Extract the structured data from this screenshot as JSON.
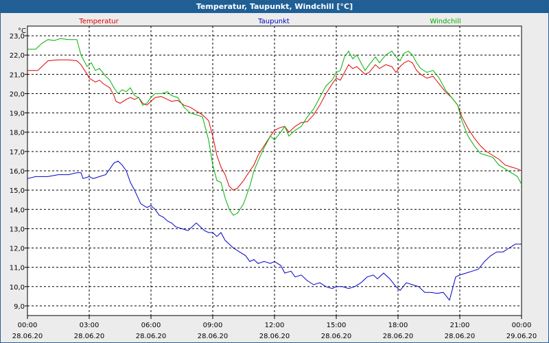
{
  "window": {
    "title": "Temperatur, Taupunkt, Windchill [°C]"
  },
  "chart_data": {
    "type": "line",
    "title": "Temperatur, Taupunkt, Windchill [°C]",
    "ylabel": "°C",
    "ylim": [
      8.5,
      23.5
    ],
    "grid": true,
    "legend": "top",
    "x_ticks": [
      {
        "time": "00:00",
        "date": "28.06.20",
        "h": 0
      },
      {
        "time": "03:00",
        "date": "28.06.20",
        "h": 3
      },
      {
        "time": "06:00",
        "date": "28.06.20",
        "h": 6
      },
      {
        "time": "09:00",
        "date": "28.06.20",
        "h": 9
      },
      {
        "time": "12:00",
        "date": "28.06.20",
        "h": 12
      },
      {
        "time": "15:00",
        "date": "28.06.20",
        "h": 15
      },
      {
        "time": "18:00",
        "date": "28.06.20",
        "h": 18
      },
      {
        "time": "21:00",
        "date": "28.06.20",
        "h": 21
      },
      {
        "time": "00:00",
        "date": "29.06.20",
        "h": 24
      }
    ],
    "y_ticks": [
      "9,0",
      "10,0",
      "11,0",
      "12,0",
      "13,0",
      "14,0",
      "15,0",
      "16,0",
      "17,0",
      "18,0",
      "19,0",
      "20,0",
      "21,0",
      "22,0",
      "23,0"
    ],
    "series": [
      {
        "name": "Temperatur",
        "color": "#e00000",
        "points": [
          [
            0,
            21.2
          ],
          [
            0.5,
            21.2
          ],
          [
            0.8,
            21.5
          ],
          [
            1.0,
            21.7
          ],
          [
            1.5,
            21.75
          ],
          [
            2.0,
            21.75
          ],
          [
            2.4,
            21.7
          ],
          [
            2.6,
            21.5
          ],
          [
            2.9,
            21.0
          ],
          [
            3.0,
            20.8
          ],
          [
            3.3,
            20.6
          ],
          [
            3.5,
            20.7
          ],
          [
            3.7,
            20.5
          ],
          [
            4.0,
            20.3
          ],
          [
            4.2,
            19.9
          ],
          [
            4.3,
            19.6
          ],
          [
            4.5,
            19.5
          ],
          [
            4.8,
            19.7
          ],
          [
            5.0,
            19.8
          ],
          [
            5.2,
            19.7
          ],
          [
            5.4,
            19.8
          ],
          [
            5.6,
            19.5
          ],
          [
            5.8,
            19.4
          ],
          [
            6.0,
            19.6
          ],
          [
            6.2,
            19.8
          ],
          [
            6.5,
            19.85
          ],
          [
            6.8,
            19.7
          ],
          [
            7.0,
            19.6
          ],
          [
            7.3,
            19.65
          ],
          [
            7.6,
            19.4
          ],
          [
            7.9,
            19.3
          ],
          [
            8.2,
            19.1
          ],
          [
            8.5,
            18.9
          ],
          [
            8.8,
            18.6
          ],
          [
            9.0,
            17.8
          ],
          [
            9.2,
            16.8
          ],
          [
            9.4,
            16.2
          ],
          [
            9.6,
            15.8
          ],
          [
            9.8,
            15.2
          ],
          [
            10.0,
            15.0
          ],
          [
            10.2,
            15.1
          ],
          [
            10.5,
            15.5
          ],
          [
            10.8,
            16.0
          ],
          [
            11.0,
            16.3
          ],
          [
            11.2,
            16.8
          ],
          [
            11.5,
            17.3
          ],
          [
            11.8,
            17.8
          ],
          [
            12.0,
            18.1
          ],
          [
            12.3,
            18.25
          ],
          [
            12.5,
            18.3
          ],
          [
            12.7,
            18.0
          ],
          [
            13.0,
            18.3
          ],
          [
            13.3,
            18.5
          ],
          [
            13.6,
            18.55
          ],
          [
            13.9,
            18.9
          ],
          [
            14.2,
            19.4
          ],
          [
            14.5,
            20.0
          ],
          [
            14.8,
            20.5
          ],
          [
            15.0,
            20.8
          ],
          [
            15.2,
            20.7
          ],
          [
            15.4,
            21.1
          ],
          [
            15.6,
            21.5
          ],
          [
            15.8,
            21.3
          ],
          [
            16.0,
            21.4
          ],
          [
            16.2,
            21.2
          ],
          [
            16.4,
            21.0
          ],
          [
            16.6,
            21.1
          ],
          [
            16.9,
            21.5
          ],
          [
            17.1,
            21.3
          ],
          [
            17.4,
            21.5
          ],
          [
            17.7,
            21.4
          ],
          [
            17.9,
            21.1
          ],
          [
            18.1,
            21.4
          ],
          [
            18.3,
            21.6
          ],
          [
            18.5,
            21.7
          ],
          [
            18.7,
            21.6
          ],
          [
            18.9,
            21.2
          ],
          [
            19.1,
            21.0
          ],
          [
            19.4,
            20.8
          ],
          [
            19.7,
            20.9
          ],
          [
            20.0,
            20.5
          ],
          [
            20.3,
            20.1
          ],
          [
            20.6,
            19.8
          ],
          [
            20.9,
            19.4
          ],
          [
            21.1,
            18.8
          ],
          [
            21.4,
            18.2
          ],
          [
            21.7,
            17.7
          ],
          [
            22.0,
            17.3
          ],
          [
            22.3,
            17.0
          ],
          [
            22.6,
            16.8
          ],
          [
            22.9,
            16.6
          ],
          [
            23.2,
            16.3
          ],
          [
            23.5,
            16.2
          ],
          [
            23.8,
            16.1
          ],
          [
            24.0,
            16.0
          ]
        ]
      },
      {
        "name": "Taupunkt",
        "color": "#0000c8",
        "points": [
          [
            0,
            15.6
          ],
          [
            0.4,
            15.7
          ],
          [
            1.0,
            15.7
          ],
          [
            1.5,
            15.8
          ],
          [
            2.0,
            15.8
          ],
          [
            2.4,
            15.9
          ],
          [
            2.6,
            15.9
          ],
          [
            2.7,
            15.6
          ],
          [
            3.0,
            15.7
          ],
          [
            3.2,
            15.6
          ],
          [
            3.5,
            15.7
          ],
          [
            3.8,
            15.8
          ],
          [
            4.0,
            16.1
          ],
          [
            4.2,
            16.4
          ],
          [
            4.4,
            16.5
          ],
          [
            4.6,
            16.3
          ],
          [
            4.8,
            16.0
          ],
          [
            5.0,
            15.4
          ],
          [
            5.2,
            15.0
          ],
          [
            5.5,
            14.3
          ],
          [
            5.8,
            14.1
          ],
          [
            6.0,
            14.2
          ],
          [
            6.2,
            14.0
          ],
          [
            6.4,
            13.7
          ],
          [
            6.6,
            13.6
          ],
          [
            6.8,
            13.4
          ],
          [
            7.0,
            13.3
          ],
          [
            7.2,
            13.1
          ],
          [
            7.5,
            13.0
          ],
          [
            7.8,
            12.9
          ],
          [
            8.0,
            13.1
          ],
          [
            8.2,
            13.3
          ],
          [
            8.4,
            13.1
          ],
          [
            8.6,
            12.9
          ],
          [
            8.8,
            12.8
          ],
          [
            9.0,
            12.8
          ],
          [
            9.2,
            12.6
          ],
          [
            9.4,
            12.8
          ],
          [
            9.6,
            12.4
          ],
          [
            9.8,
            12.2
          ],
          [
            10.0,
            12.0
          ],
          [
            10.3,
            11.8
          ],
          [
            10.6,
            11.6
          ],
          [
            10.8,
            11.3
          ],
          [
            11.0,
            11.4
          ],
          [
            11.2,
            11.2
          ],
          [
            11.5,
            11.3
          ],
          [
            11.8,
            11.2
          ],
          [
            12.0,
            11.3
          ],
          [
            12.3,
            11.1
          ],
          [
            12.5,
            10.7
          ],
          [
            12.8,
            10.8
          ],
          [
            13.0,
            10.5
          ],
          [
            13.3,
            10.6
          ],
          [
            13.6,
            10.3
          ],
          [
            13.9,
            10.1
          ],
          [
            14.2,
            10.2
          ],
          [
            14.5,
            10.0
          ],
          [
            14.8,
            9.9
          ],
          [
            15.0,
            10.0
          ],
          [
            15.3,
            10.0
          ],
          [
            15.6,
            9.9
          ],
          [
            15.9,
            10.0
          ],
          [
            16.2,
            10.2
          ],
          [
            16.5,
            10.5
          ],
          [
            16.8,
            10.6
          ],
          [
            17.0,
            10.4
          ],
          [
            17.3,
            10.7
          ],
          [
            17.6,
            10.4
          ],
          [
            17.9,
            10.0
          ],
          [
            18.1,
            9.8
          ],
          [
            18.4,
            10.2
          ],
          [
            18.7,
            10.1
          ],
          [
            19.0,
            10.0
          ],
          [
            19.3,
            9.7
          ],
          [
            19.6,
            9.7
          ],
          [
            19.9,
            9.65
          ],
          [
            20.2,
            9.7
          ],
          [
            20.5,
            9.3
          ],
          [
            20.8,
            10.5
          ],
          [
            21.0,
            10.6
          ],
          [
            21.3,
            10.7
          ],
          [
            21.6,
            10.8
          ],
          [
            21.9,
            10.9
          ],
          [
            22.2,
            11.3
          ],
          [
            22.5,
            11.6
          ],
          [
            22.8,
            11.8
          ],
          [
            23.1,
            11.8
          ],
          [
            23.4,
            12.0
          ],
          [
            23.7,
            12.2
          ],
          [
            24.0,
            12.2
          ]
        ]
      },
      {
        "name": "Windchill",
        "color": "#00b000",
        "points": [
          [
            0,
            22.3
          ],
          [
            0.4,
            22.3
          ],
          [
            0.7,
            22.6
          ],
          [
            1.0,
            22.8
          ],
          [
            1.3,
            22.75
          ],
          [
            1.6,
            22.85
          ],
          [
            2.0,
            22.8
          ],
          [
            2.4,
            22.8
          ],
          [
            2.6,
            22.0
          ],
          [
            2.9,
            21.4
          ],
          [
            3.1,
            21.6
          ],
          [
            3.3,
            21.2
          ],
          [
            3.5,
            21.3
          ],
          [
            3.8,
            20.9
          ],
          [
            4.0,
            20.7
          ],
          [
            4.2,
            20.3
          ],
          [
            4.4,
            20.0
          ],
          [
            4.6,
            20.2
          ],
          [
            4.8,
            20.1
          ],
          [
            5.0,
            20.3
          ],
          [
            5.2,
            19.9
          ],
          [
            5.4,
            19.8
          ],
          [
            5.6,
            19.4
          ],
          [
            5.8,
            19.5
          ],
          [
            6.0,
            19.8
          ],
          [
            6.2,
            20.0
          ],
          [
            6.5,
            20.0
          ],
          [
            6.8,
            20.1
          ],
          [
            7.0,
            19.9
          ],
          [
            7.3,
            19.8
          ],
          [
            7.6,
            19.3
          ],
          [
            7.9,
            19.0
          ],
          [
            8.2,
            18.9
          ],
          [
            8.5,
            18.8
          ],
          [
            8.8,
            17.6
          ],
          [
            9.0,
            16.3
          ],
          [
            9.2,
            15.5
          ],
          [
            9.4,
            15.4
          ],
          [
            9.6,
            14.6
          ],
          [
            9.8,
            14.0
          ],
          [
            10.0,
            13.7
          ],
          [
            10.2,
            13.8
          ],
          [
            10.5,
            14.3
          ],
          [
            10.8,
            15.2
          ],
          [
            11.0,
            16.0
          ],
          [
            11.2,
            16.5
          ],
          [
            11.5,
            17.2
          ],
          [
            11.8,
            17.8
          ],
          [
            12.0,
            17.6
          ],
          [
            12.3,
            18.0
          ],
          [
            12.5,
            18.3
          ],
          [
            12.7,
            17.8
          ],
          [
            13.0,
            18.1
          ],
          [
            13.3,
            18.3
          ],
          [
            13.6,
            18.8
          ],
          [
            13.9,
            19.2
          ],
          [
            14.2,
            19.8
          ],
          [
            14.5,
            20.4
          ],
          [
            14.8,
            20.7
          ],
          [
            15.0,
            21.1
          ],
          [
            15.2,
            21.2
          ],
          [
            15.4,
            21.9
          ],
          [
            15.6,
            22.2
          ],
          [
            15.8,
            21.8
          ],
          [
            16.0,
            22.0
          ],
          [
            16.2,
            21.6
          ],
          [
            16.4,
            21.2
          ],
          [
            16.6,
            21.5
          ],
          [
            16.9,
            21.9
          ],
          [
            17.1,
            21.6
          ],
          [
            17.4,
            22.0
          ],
          [
            17.7,
            22.2
          ],
          [
            17.9,
            21.9
          ],
          [
            18.1,
            21.7
          ],
          [
            18.3,
            22.1
          ],
          [
            18.5,
            22.2
          ],
          [
            18.7,
            22.0
          ],
          [
            18.9,
            21.6
          ],
          [
            19.1,
            21.3
          ],
          [
            19.4,
            21.1
          ],
          [
            19.7,
            21.2
          ],
          [
            20.0,
            20.8
          ],
          [
            20.3,
            20.2
          ],
          [
            20.6,
            19.8
          ],
          [
            20.9,
            19.4
          ],
          [
            21.1,
            18.6
          ],
          [
            21.4,
            17.8
          ],
          [
            21.7,
            17.3
          ],
          [
            22.0,
            16.9
          ],
          [
            22.3,
            16.8
          ],
          [
            22.6,
            16.7
          ],
          [
            22.9,
            16.3
          ],
          [
            23.2,
            16.1
          ],
          [
            23.5,
            15.9
          ],
          [
            23.8,
            15.7
          ],
          [
            24.0,
            15.3
          ]
        ]
      }
    ]
  }
}
